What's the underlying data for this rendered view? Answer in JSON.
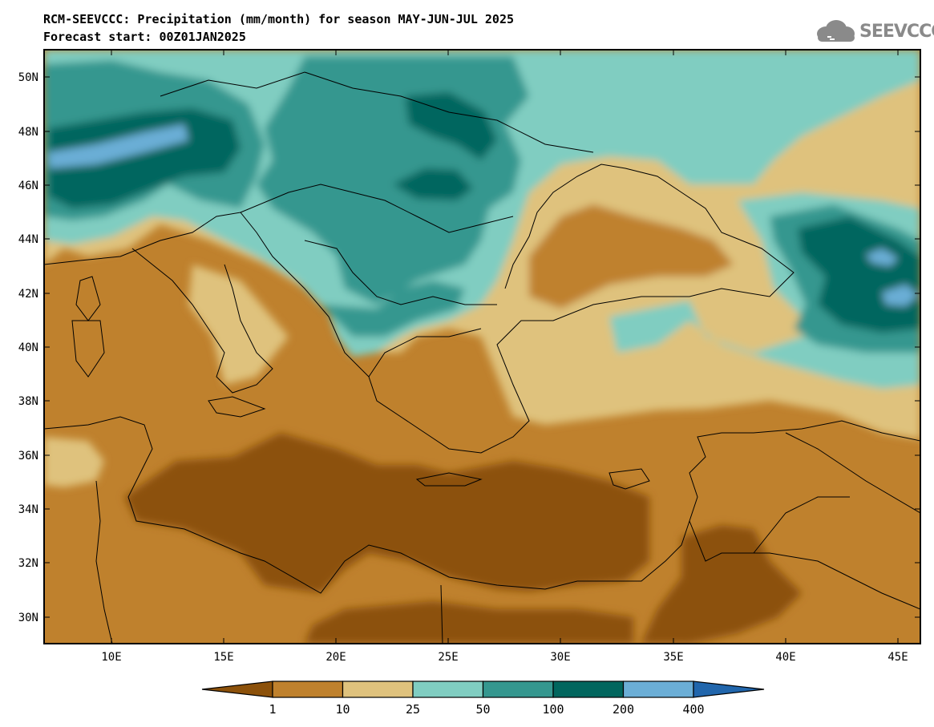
{
  "header": {
    "line1": "RCM-SEEVCCC: Precipitation (mm/month) for season MAY-JUN-JUL 2025",
    "line2": "Forecast start: 00Z01JAN2025"
  },
  "logo": {
    "text": "SEEVCCC",
    "icon": "cloud-logo-icon"
  },
  "axes": {
    "lat_labels": [
      "50N",
      "48N",
      "46N",
      "44N",
      "42N",
      "40N",
      "38N",
      "36N",
      "34N",
      "32N",
      "30N"
    ],
    "lon_labels": [
      "10E",
      "15E",
      "20E",
      "25E",
      "30E",
      "35E",
      "40E",
      "45E"
    ]
  },
  "legend": {
    "class_colors": [
      "#8c510a",
      "#bf812d",
      "#dfc27d",
      "#80cdc1",
      "#35978f",
      "#01665e",
      "#6baed6",
      "#2166ac"
    ],
    "boundaries": [
      "1",
      "10",
      "25",
      "50",
      "100",
      "200",
      "400"
    ]
  }
}
